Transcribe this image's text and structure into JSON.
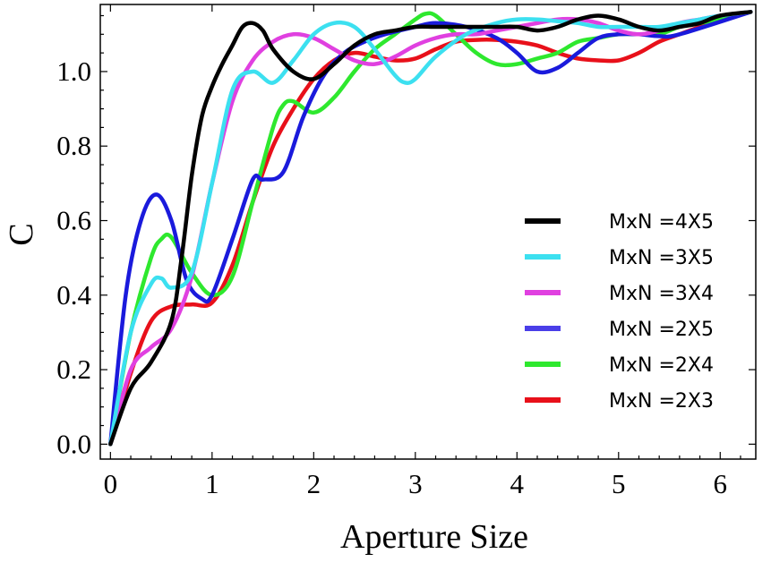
{
  "chart_data": {
    "type": "line",
    "title": "",
    "xlabel": "Aperture Size",
    "ylabel": "C",
    "xlim": [
      -0.1,
      6.35
    ],
    "ylim": [
      -0.04,
      1.18
    ],
    "xticks": [
      0,
      1,
      2,
      3,
      4,
      5,
      6
    ],
    "yticks": [
      0.0,
      0.2,
      0.4,
      0.6,
      0.8,
      1.0
    ],
    "xtick_labels": [
      "0",
      "1",
      "2",
      "3",
      "4",
      "5",
      "6"
    ],
    "ytick_labels": [
      "0.0",
      "0.2",
      "0.4",
      "0.6",
      "0.8",
      "1.0"
    ],
    "legend_position": "center-right",
    "series": [
      {
        "name": "MxN =2X3",
        "color": "#e8101a",
        "x": [
          0,
          0.2,
          0.4,
          0.6,
          0.8,
          1.0,
          1.2,
          1.4,
          1.6,
          1.8,
          2.0,
          2.2,
          2.4,
          2.6,
          2.8,
          3.0,
          3.2,
          3.4,
          3.6,
          3.8,
          4.0,
          4.2,
          4.4,
          4.6,
          4.8,
          5.0,
          5.2,
          5.4,
          5.6,
          5.8,
          6.0,
          6.3
        ],
        "y": [
          0.0,
          0.19,
          0.33,
          0.37,
          0.375,
          0.38,
          0.48,
          0.65,
          0.8,
          0.9,
          0.98,
          1.03,
          1.05,
          1.04,
          1.03,
          1.035,
          1.06,
          1.08,
          1.085,
          1.085,
          1.08,
          1.07,
          1.05,
          1.035,
          1.03,
          1.03,
          1.05,
          1.08,
          1.1,
          1.12,
          1.14,
          1.16
        ]
      },
      {
        "name": "MxN =2X4",
        "color": "#2ee82e",
        "x": [
          0,
          0.2,
          0.4,
          0.5,
          0.6,
          0.8,
          1.0,
          1.2,
          1.4,
          1.6,
          1.7,
          1.8,
          2.0,
          2.2,
          2.4,
          2.6,
          2.8,
          3.0,
          3.1,
          3.2,
          3.4,
          3.6,
          3.8,
          4.0,
          4.2,
          4.4,
          4.6,
          4.8,
          5.0,
          5.2,
          5.4,
          5.6,
          5.8,
          6.0,
          6.3
        ],
        "y": [
          0.0,
          0.3,
          0.5,
          0.55,
          0.555,
          0.46,
          0.4,
          0.45,
          0.65,
          0.85,
          0.91,
          0.92,
          0.89,
          0.93,
          1.0,
          1.06,
          1.1,
          1.14,
          1.155,
          1.15,
          1.1,
          1.05,
          1.02,
          1.02,
          1.035,
          1.05,
          1.08,
          1.09,
          1.1,
          1.1,
          1.1,
          1.12,
          1.13,
          1.14,
          1.16
        ]
      },
      {
        "name": "MxN =2X5",
        "color": "#1a1adc",
        "x": [
          0,
          0.15,
          0.3,
          0.45,
          0.6,
          0.75,
          0.9,
          1.0,
          1.2,
          1.4,
          1.5,
          1.7,
          1.9,
          2.1,
          2.3,
          2.5,
          2.7,
          3.0,
          3.2,
          3.5,
          3.8,
          4.0,
          4.2,
          4.4,
          4.6,
          4.8,
          5.0,
          5.2,
          5.4,
          5.6,
          6.3
        ],
        "y": [
          0.0,
          0.4,
          0.6,
          0.67,
          0.6,
          0.44,
          0.39,
          0.4,
          0.55,
          0.71,
          0.71,
          0.73,
          0.88,
          0.99,
          1.05,
          1.08,
          1.1,
          1.12,
          1.13,
          1.12,
          1.09,
          1.05,
          1.0,
          1.01,
          1.05,
          1.09,
          1.1,
          1.1,
          1.095,
          1.1,
          1.16
        ]
      },
      {
        "name": "MxN =3X4",
        "color": "#e040e0",
        "x": [
          0,
          0.2,
          0.4,
          0.6,
          0.8,
          1.0,
          1.2,
          1.4,
          1.6,
          1.8,
          2.0,
          2.2,
          2.4,
          2.6,
          2.8,
          3.0,
          3.2,
          3.4,
          3.6,
          3.8,
          4.0,
          4.2,
          4.4,
          4.6,
          4.8,
          5.0,
          5.2,
          5.4,
          5.6,
          5.8,
          6.0,
          6.3
        ],
        "y": [
          0.0,
          0.2,
          0.26,
          0.31,
          0.45,
          0.7,
          0.92,
          1.03,
          1.08,
          1.1,
          1.09,
          1.06,
          1.03,
          1.02,
          1.04,
          1.07,
          1.09,
          1.1,
          1.1,
          1.11,
          1.12,
          1.13,
          1.14,
          1.14,
          1.13,
          1.11,
          1.1,
          1.11,
          1.13,
          1.14,
          1.15,
          1.16
        ]
      },
      {
        "name": "MxN =3X5",
        "color": "#3ce0f0",
        "x": [
          0,
          0.2,
          0.4,
          0.5,
          0.6,
          0.8,
          1.0,
          1.2,
          1.4,
          1.6,
          1.8,
          2.0,
          2.2,
          2.4,
          2.6,
          2.8,
          2.9,
          3.0,
          3.2,
          3.5,
          3.8,
          4.0,
          4.2,
          4.4,
          4.6,
          4.8,
          5.0,
          5.2,
          5.4,
          5.6,
          5.8,
          6.0,
          6.3
        ],
        "y": [
          0.0,
          0.3,
          0.43,
          0.445,
          0.42,
          0.46,
          0.7,
          0.95,
          1.0,
          0.97,
          1.03,
          1.1,
          1.13,
          1.12,
          1.06,
          0.99,
          0.97,
          0.98,
          1.04,
          1.1,
          1.13,
          1.14,
          1.14,
          1.135,
          1.13,
          1.12,
          1.12,
          1.12,
          1.12,
          1.13,
          1.14,
          1.15,
          1.16
        ]
      },
      {
        "name": "MxN =4X5",
        "color": "#000000",
        "x": [
          0,
          0.2,
          0.4,
          0.6,
          0.7,
          0.8,
          0.9,
          1.0,
          1.1,
          1.2,
          1.3,
          1.4,
          1.5,
          1.6,
          1.8,
          2.0,
          2.2,
          2.4,
          2.6,
          2.8,
          3.0,
          3.2,
          3.4,
          3.6,
          3.8,
          4.0,
          4.2,
          4.4,
          4.6,
          4.8,
          5.0,
          5.2,
          5.4,
          5.6,
          5.8,
          6.0,
          6.3
        ],
        "y": [
          0.0,
          0.15,
          0.22,
          0.33,
          0.5,
          0.72,
          0.88,
          0.96,
          1.02,
          1.07,
          1.12,
          1.13,
          1.11,
          1.06,
          1.0,
          0.98,
          1.02,
          1.07,
          1.1,
          1.11,
          1.12,
          1.12,
          1.12,
          1.12,
          1.12,
          1.12,
          1.11,
          1.12,
          1.14,
          1.15,
          1.14,
          1.12,
          1.11,
          1.12,
          1.13,
          1.15,
          1.16
        ]
      }
    ]
  },
  "legend": {
    "entries": [
      {
        "label": "MxN =4X5",
        "color": "#000000"
      },
      {
        "label": "MxN =3X5",
        "color": "#3ce0f0"
      },
      {
        "label": "MxN =3X4",
        "color": "#e040e0"
      },
      {
        "label": "MxN =2X5",
        "color": "#4a3ee8"
      },
      {
        "label": "MxN =2X4",
        "color": "#2ee82e"
      },
      {
        "label": "MxN =2X3",
        "color": "#e8101a"
      }
    ]
  }
}
